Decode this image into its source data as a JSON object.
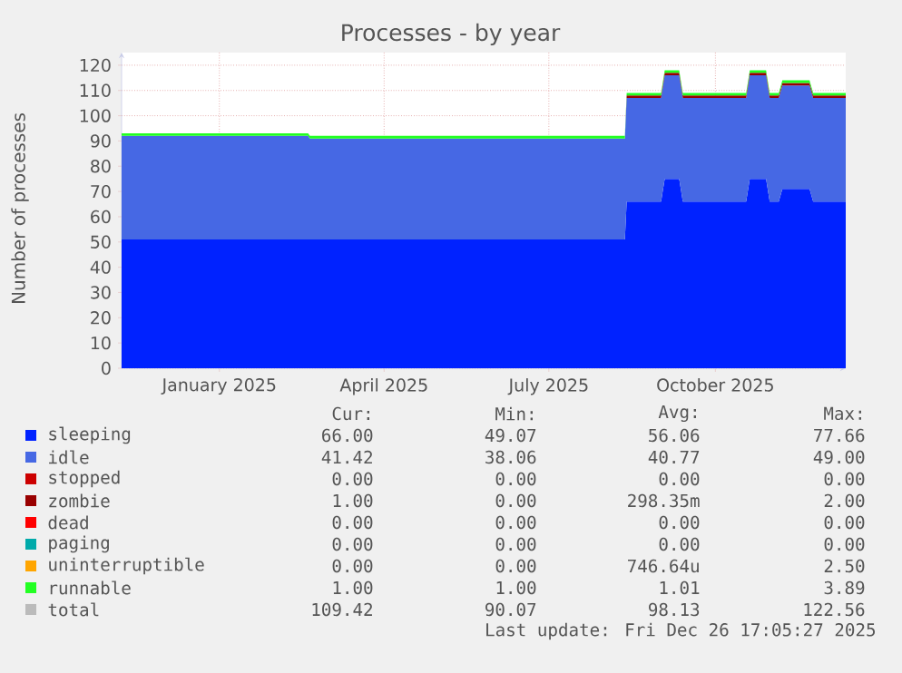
{
  "chart_data": {
    "type": "area",
    "title": "Processes - by year",
    "ylabel": "Number of processes",
    "stacked": true,
    "grid": true,
    "legend": "bottom",
    "xlim": [
      "2024-11-21",
      "2025-12-26"
    ],
    "xticks": [
      {
        "value": "2025-01-14",
        "label": "January 2025"
      },
      {
        "value": "2025-04-15",
        "label": "April 2025"
      },
      {
        "value": "2025-07-15",
        "label": "July 2025"
      },
      {
        "value": "2025-10-15",
        "label": "October 2025"
      }
    ],
    "ylim": [
      0,
      125
    ],
    "yticks": [
      0,
      10,
      20,
      30,
      40,
      50,
      60,
      70,
      80,
      90,
      100,
      110,
      120
    ],
    "x": [
      "2024-11-21",
      "2025-03-04",
      "2025-03-05",
      "2025-08-26",
      "2025-08-27",
      "2025-09-15",
      "2025-09-17",
      "2025-09-25",
      "2025-09-27",
      "2025-11-01",
      "2025-11-03",
      "2025-11-12",
      "2025-11-14",
      "2025-11-19",
      "2025-11-21",
      "2025-12-06",
      "2025-12-08",
      "2025-12-26"
    ],
    "series": [
      {
        "name": "sleeping",
        "color": "#0022ff",
        "values": [
          51,
          51,
          51,
          51,
          66,
          66,
          75,
          75,
          66,
          66,
          75,
          75,
          66,
          66,
          71,
          71,
          66,
          66
        ]
      },
      {
        "name": "idle",
        "color": "#4668e4",
        "values": [
          41,
          41,
          40,
          40,
          41,
          41,
          41,
          41,
          41,
          41,
          41,
          41,
          41,
          41,
          41,
          41,
          41,
          41
        ]
      },
      {
        "name": "stopped",
        "color": "#cc0000",
        "values": [
          null,
          null,
          null,
          null,
          null,
          null,
          null,
          null,
          null,
          null,
          null,
          null,
          null,
          null,
          null,
          null,
          null,
          null
        ]
      },
      {
        "name": "zombie",
        "color": "#990000",
        "values": [
          0,
          0,
          0,
          0,
          1,
          1,
          1,
          1,
          1,
          1,
          1,
          1,
          1,
          1,
          1,
          1,
          1,
          1
        ]
      },
      {
        "name": "dead",
        "color": "#ff0000",
        "values": [
          null,
          null,
          null,
          null,
          null,
          null,
          null,
          null,
          null,
          null,
          null,
          null,
          null,
          null,
          null,
          null,
          null,
          null
        ]
      },
      {
        "name": "paging",
        "color": "#00aaaa",
        "values": [
          null,
          null,
          null,
          null,
          null,
          null,
          null,
          null,
          null,
          null,
          null,
          null,
          null,
          null,
          null,
          null,
          null,
          null
        ]
      },
      {
        "name": "uninterruptible",
        "color": "#ffa500",
        "values": [
          null,
          null,
          null,
          null,
          null,
          null,
          null,
          null,
          null,
          null,
          null,
          null,
          null,
          null,
          null,
          null,
          null,
          null
        ]
      },
      {
        "name": "runnable",
        "color": "#22ff22",
        "values": [
          1,
          1,
          1,
          1,
          1,
          1,
          1,
          1,
          1,
          1,
          1,
          1,
          1,
          1,
          1,
          1,
          1,
          1
        ]
      },
      {
        "name": "total",
        "color": "#bbbbbb",
        "values": [
          null,
          null,
          null,
          null,
          null,
          null,
          null,
          null,
          null,
          null,
          null,
          null,
          null,
          null,
          null,
          null,
          null,
          null
        ]
      }
    ],
    "annotations": [
      "Cur:",
      "Min:",
      "Avg:",
      "Max:",
      "66.00",
      "49.07",
      "56.06",
      "77.66",
      "41.42",
      "38.06",
      "40.77",
      "49.00",
      "0.00",
      "0.00",
      "0.00",
      "0.00",
      "1.00",
      "0.00",
      "298.35m",
      "2.00",
      "0.00",
      "0.00",
      "0.00",
      "0.00",
      "0.00",
      "0.00",
      "0.00",
      "0.00",
      "0.00",
      "0.00",
      "746.64u",
      "2.50",
      "1.00",
      "1.00",
      "1.01",
      "3.89",
      "109.42",
      "90.07",
      "98.13",
      "122.56",
      "Last update: Fri Dec 26 17:05:27 2025"
    ]
  }
}
